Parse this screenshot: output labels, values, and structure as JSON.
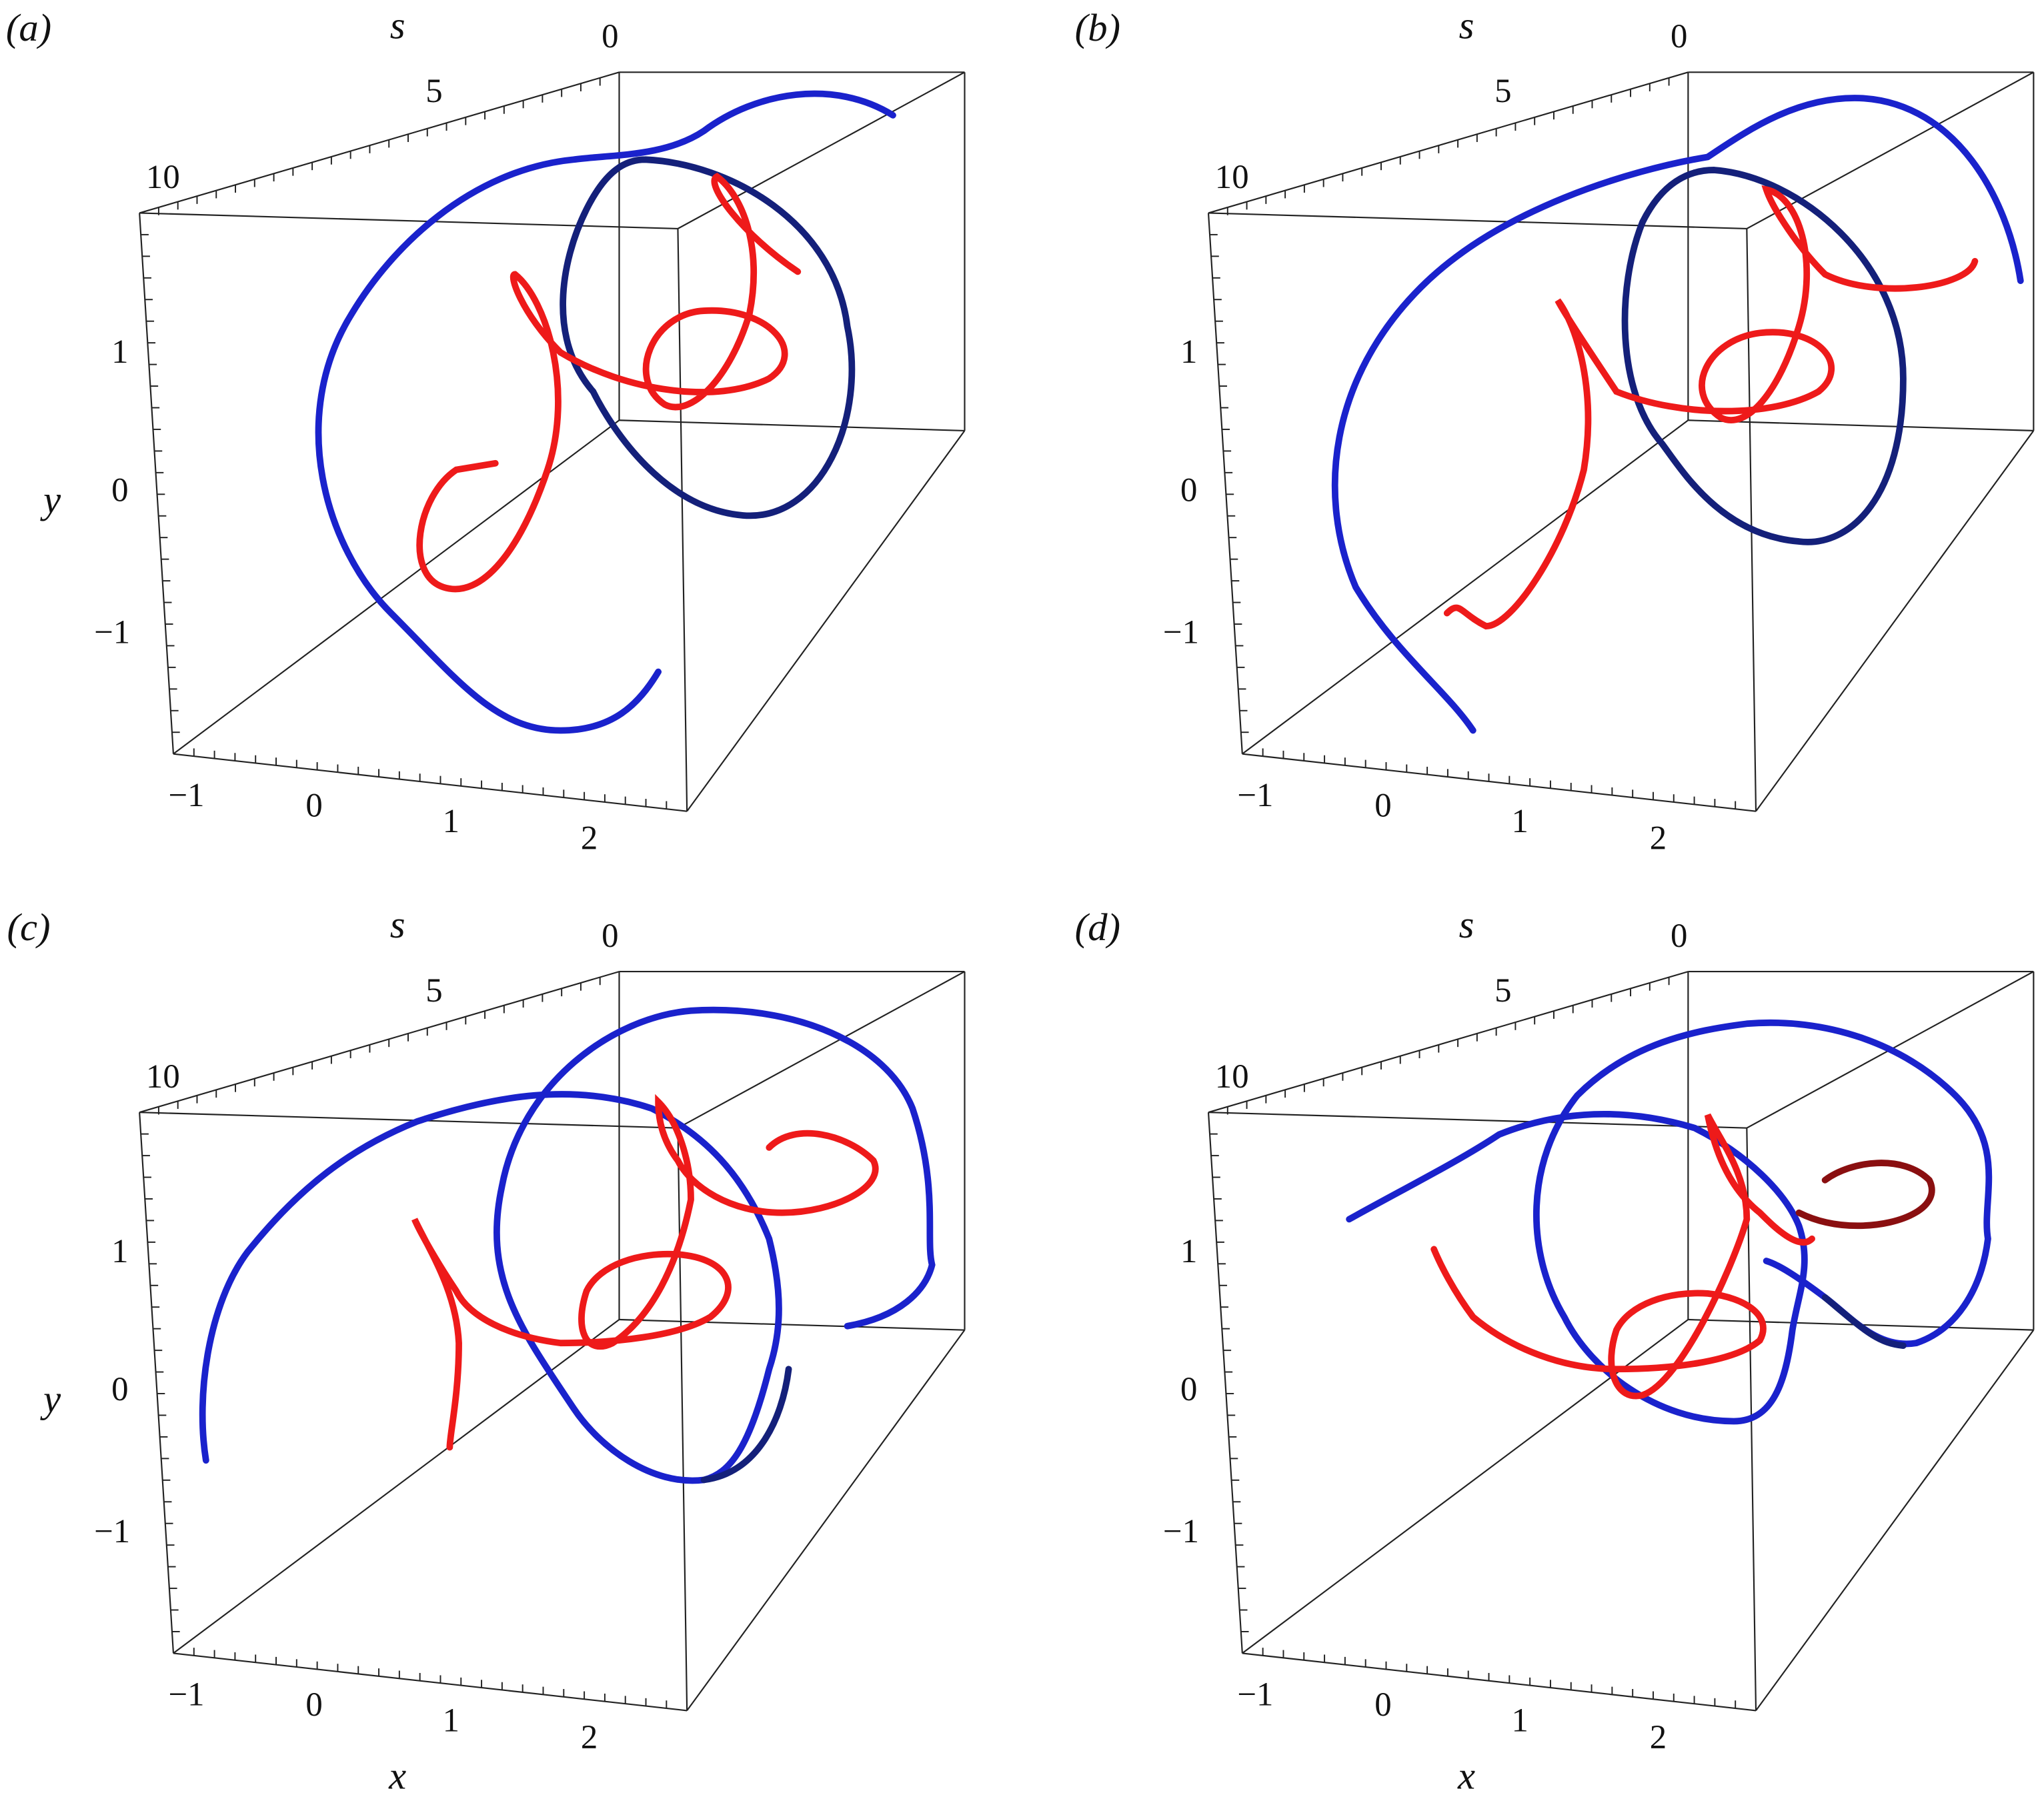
{
  "panels": [
    {
      "label": "(a)",
      "s_label": "s",
      "y_label": "y",
      "s_ticks": [
        "0",
        "5",
        "10"
      ],
      "y_ticks": [
        "1",
        "0",
        "−1"
      ],
      "x_ticks": [
        "−1",
        "0",
        "1",
        "2"
      ]
    },
    {
      "label": "(b)",
      "s_label": "s",
      "s_ticks": [
        "0",
        "5",
        "10"
      ],
      "y_ticks": [
        "1",
        "0",
        "−1"
      ],
      "x_ticks": [
        "−1",
        "0",
        "1",
        "2"
      ]
    },
    {
      "label": "(c)",
      "s_label": "s",
      "y_label": "y",
      "x_label": "x",
      "s_ticks": [
        "0",
        "5",
        "10"
      ],
      "y_ticks": [
        "1",
        "0",
        "−1"
      ],
      "x_ticks": [
        "−1",
        "0",
        "1",
        "2"
      ]
    },
    {
      "label": "(d)",
      "s_label": "s",
      "x_label": "x",
      "s_ticks": [
        "0",
        "5",
        "10"
      ],
      "y_ticks": [
        "1",
        "0",
        "−1"
      ],
      "x_ticks": [
        "−1",
        "0",
        "1",
        "2"
      ]
    }
  ]
}
